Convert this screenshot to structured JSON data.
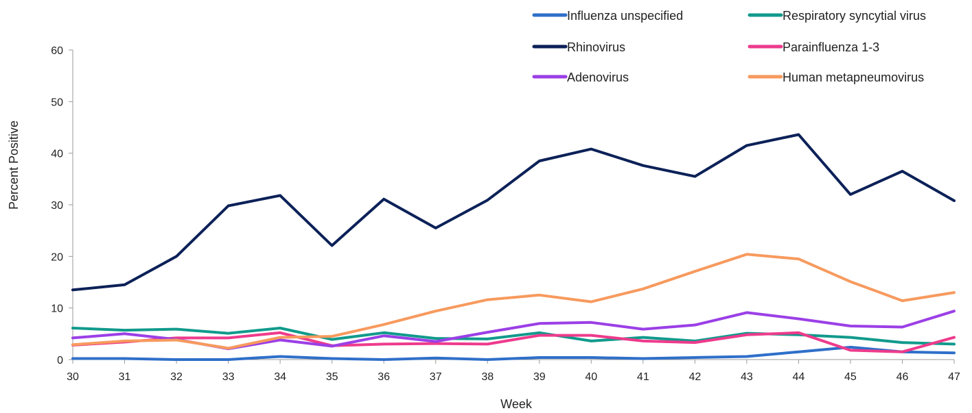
{
  "chart_data": {
    "type": "line",
    "title": "",
    "xlabel": "Week",
    "ylabel": "Percent Positive",
    "ylim": [
      0,
      60
    ],
    "yticks": [
      0,
      10,
      20,
      30,
      40,
      50,
      60
    ],
    "grid": false,
    "legend_position": "top-right",
    "categories": [
      "30",
      "31",
      "32",
      "33",
      "34",
      "35",
      "36",
      "37",
      "38",
      "39",
      "40",
      "41",
      "42",
      "43",
      "44",
      "45",
      "46",
      "47"
    ],
    "series": [
      {
        "name": "Influenza unspecified",
        "color": "#2F6FC9",
        "values": [
          0.2,
          0.2,
          0.0,
          0.0,
          0.6,
          0.2,
          0.0,
          0.3,
          0.0,
          0.4,
          0.4,
          0.2,
          0.4,
          0.6,
          1.5,
          2.4,
          1.5,
          1.3
        ]
      },
      {
        "name": "Respiratory syncytial virus",
        "color": "#119A8C",
        "values": [
          6.1,
          5.7,
          5.9,
          5.1,
          6.1,
          3.9,
          5.2,
          4.1,
          4.0,
          5.2,
          3.6,
          4.3,
          3.6,
          5.1,
          4.8,
          4.3,
          3.3,
          3.0
        ]
      },
      {
        "name": "Rhinovirus",
        "color": "#0C2158",
        "values": [
          13.5,
          14.5,
          20.0,
          29.8,
          31.8,
          22.1,
          31.1,
          25.5,
          30.9,
          38.5,
          40.8,
          37.6,
          35.5,
          41.5,
          43.6,
          32.0,
          36.5,
          30.8
        ]
      },
      {
        "name": "Parainfluenza 1-3",
        "color": "#EE3B8C",
        "values": [
          2.8,
          3.4,
          4.2,
          4.2,
          5.2,
          2.7,
          3.0,
          3.1,
          3.0,
          4.7,
          4.7,
          3.6,
          3.3,
          4.8,
          5.2,
          1.8,
          1.5,
          4.3
        ]
      },
      {
        "name": "Adenovirus",
        "color": "#9B3FE6",
        "values": [
          4.2,
          5.0,
          3.9,
          2.1,
          3.8,
          2.6,
          4.6,
          3.5,
          5.3,
          7.0,
          7.2,
          5.9,
          6.7,
          9.1,
          7.9,
          6.5,
          6.3,
          9.4
        ]
      },
      {
        "name": "Human metapneumovirus",
        "color": "#F79A5E",
        "values": [
          2.9,
          3.6,
          3.8,
          2.2,
          4.3,
          4.5,
          6.8,
          9.4,
          11.6,
          12.5,
          11.2,
          13.7,
          17.1,
          20.4,
          19.5,
          15.1,
          11.4,
          13.0
        ]
      }
    ]
  }
}
